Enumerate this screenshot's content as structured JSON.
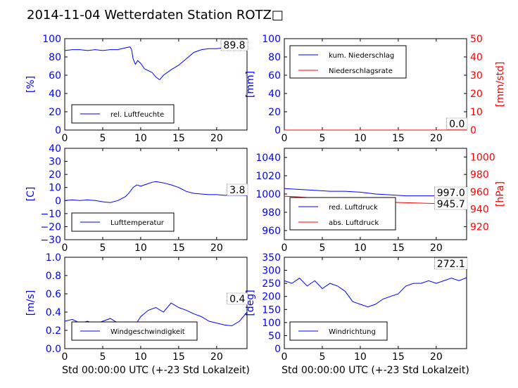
{
  "title": "2014-11-04 Wetterdaten Station ROTZ□",
  "colors": {
    "blue": "#0000ff",
    "red": "#ff0000",
    "black": "#000000"
  },
  "chart_data": [
    {
      "id": "p1",
      "type": "line",
      "ylabel": "[%]",
      "xlim": [
        0,
        24
      ],
      "ylim": [
        0,
        100
      ],
      "xticks": [
        0,
        5,
        10,
        15,
        20
      ],
      "yticks": [
        0,
        20,
        40,
        60,
        80,
        100
      ],
      "legend": "lower-left",
      "annotation": "89.8",
      "series": [
        {
          "name": "rel. Luftfeuchte",
          "color": "#0000ff",
          "x": [
            0,
            1,
            2,
            3,
            4,
            5,
            6,
            7,
            8,
            8.6,
            8.8,
            9,
            9.3,
            9.6,
            10,
            10.5,
            11,
            11.5,
            12,
            12.5,
            13,
            14,
            15,
            16,
            17,
            18,
            19,
            20,
            21,
            22,
            23,
            24
          ],
          "y": [
            87,
            88,
            88,
            87,
            88,
            87,
            88,
            88,
            90,
            91,
            88,
            78,
            72,
            76,
            73,
            67,
            65,
            63,
            58,
            55,
            60,
            66,
            71,
            78,
            85,
            88,
            89,
            89,
            90,
            90,
            90,
            90
          ]
        }
      ]
    },
    {
      "id": "p2",
      "type": "line",
      "ylabel": "[mm]",
      "y2label": "[mm/std]",
      "xlim": [
        0,
        24
      ],
      "ylim": [
        0,
        100
      ],
      "y2lim": [
        0,
        50
      ],
      "xticks": [
        0,
        5,
        10,
        15,
        20
      ],
      "yticks": [
        0,
        20,
        40,
        60,
        80,
        100
      ],
      "y2ticks": [
        0,
        10,
        20,
        30,
        40,
        50
      ],
      "legend": "upper-left",
      "annotation": "0.0",
      "series": [
        {
          "name": "kum. Niederschlag",
          "color": "#0000ff",
          "x": [
            0,
            24
          ],
          "y": [
            0,
            0
          ]
        },
        {
          "name": "Niederschlagsrate",
          "color": "#ff0000",
          "x": [
            0,
            24
          ],
          "y": [
            0,
            0
          ]
        }
      ]
    },
    {
      "id": "p3",
      "type": "line",
      "ylabel": "[C]",
      "xlim": [
        0,
        24
      ],
      "ylim": [
        -30,
        40
      ],
      "xticks": [
        0,
        5,
        10,
        15,
        20
      ],
      "yticks": [
        -30,
        -20,
        -10,
        0,
        10,
        20,
        30,
        40
      ],
      "legend": "lower-left",
      "annotation": "3.8",
      "series": [
        {
          "name": "Lufttemperatur",
          "color": "#0000ff",
          "x": [
            0,
            1,
            2,
            3,
            4,
            5,
            6,
            7,
            8,
            8.5,
            9,
            9.5,
            10,
            10.5,
            11,
            11.5,
            12,
            12.5,
            13,
            14,
            15,
            16,
            17,
            18,
            19,
            20,
            21,
            22,
            23,
            24
          ],
          "y": [
            0,
            0.5,
            0,
            0.5,
            0,
            -1,
            -1.5,
            0,
            3,
            6,
            10,
            12,
            11,
            12,
            13,
            14,
            14.5,
            14,
            13.5,
            12,
            10,
            7,
            5.5,
            5,
            4.5,
            4.5,
            4,
            4,
            4,
            3.8
          ]
        }
      ]
    },
    {
      "id": "p4",
      "type": "line",
      "y2label": "[hPa]",
      "xlim": [
        0,
        24
      ],
      "ylim": [
        950,
        1050
      ],
      "y2lim": [
        905,
        1010
      ],
      "xticks": [
        0,
        5,
        10,
        15,
        20
      ],
      "yticks": [
        960,
        980,
        1000,
        1020,
        1040
      ],
      "y2ticks": [
        920,
        940,
        960,
        980,
        1000
      ],
      "legend": "lower-left",
      "annotations": [
        "997.0",
        "945.7"
      ],
      "series": [
        {
          "name": "red. Luftdruck",
          "color": "#0000ff",
          "x": [
            0,
            2,
            4,
            6,
            8,
            10,
            12,
            14,
            16,
            18,
            20,
            22,
            24
          ],
          "y": [
            1006,
            1005,
            1004,
            1003,
            1003,
            1002,
            1000,
            999,
            998,
            998,
            998,
            997,
            997
          ]
        },
        {
          "name": "abs. Luftdruck",
          "color": "#ff0000",
          "axis": "right",
          "x": [
            0,
            2,
            4,
            6,
            8,
            10,
            12,
            14,
            16,
            18,
            20,
            22,
            24
          ],
          "y": [
            955,
            954,
            953,
            952,
            951,
            950,
            949,
            948,
            947.5,
            947,
            946.5,
            946,
            945.7
          ]
        }
      ]
    },
    {
      "id": "p5",
      "type": "line",
      "ylabel": "[m/s]",
      "xlabel": "Std 00:00:00 UTC (+-23 Std Lokalzeit)",
      "xlim": [
        0,
        24
      ],
      "ylim": [
        0,
        1.0
      ],
      "xticks": [
        0,
        5,
        10,
        15,
        20
      ],
      "yticks": [
        0.0,
        0.2,
        0.4,
        0.6,
        0.8,
        1.0
      ],
      "legend": "lower-left",
      "annotation": "0.4",
      "series": [
        {
          "name": "Windgeschwindigkeit",
          "color": "#0000ff",
          "x": [
            0,
            1,
            2,
            3,
            4,
            5,
            6,
            7,
            8,
            9,
            10,
            11,
            12,
            13,
            14,
            15,
            16,
            17,
            18,
            19,
            20,
            21,
            22,
            23,
            24
          ],
          "y": [
            0.3,
            0.32,
            0.28,
            0.3,
            0.27,
            0.3,
            0.33,
            0.28,
            0.25,
            0.22,
            0.35,
            0.42,
            0.45,
            0.4,
            0.5,
            0.45,
            0.42,
            0.38,
            0.35,
            0.3,
            0.28,
            0.26,
            0.25,
            0.3,
            0.4
          ]
        }
      ]
    },
    {
      "id": "p6",
      "type": "line",
      "ylabel": "[deg]",
      "xlabel": "Std 00:00:00 UTC (+-23 Std Lokalzeit)",
      "xlim": [
        0,
        24
      ],
      "ylim": [
        0,
        350
      ],
      "xticks": [
        0,
        5,
        10,
        15,
        20
      ],
      "yticks": [
        0,
        50,
        100,
        150,
        200,
        250,
        300,
        350
      ],
      "legend": "lower-left",
      "annotation": "272.1",
      "series": [
        {
          "name": "Windrichtung",
          "color": "#0000ff",
          "x": [
            0,
            1,
            2,
            3,
            4,
            5,
            6,
            7,
            8,
            9,
            10,
            11,
            12,
            13,
            14,
            15,
            16,
            17,
            18,
            19,
            20,
            21,
            22,
            23,
            24
          ],
          "y": [
            260,
            250,
            270,
            240,
            260,
            230,
            250,
            240,
            220,
            180,
            170,
            160,
            170,
            190,
            200,
            210,
            240,
            250,
            250,
            260,
            250,
            260,
            270,
            260,
            272
          ]
        }
      ]
    }
  ]
}
